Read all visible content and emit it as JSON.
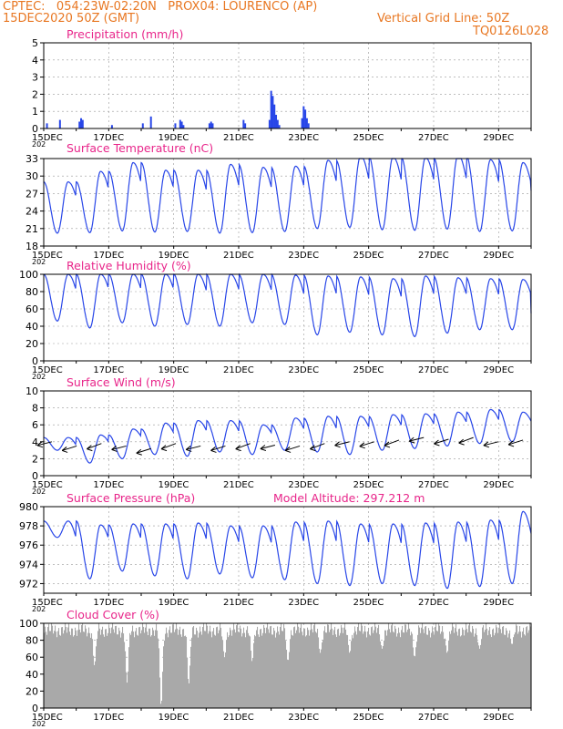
{
  "header": {
    "line1": "CPTEC:   054:23W-02:20N   PROX04: LOURENCO (AP)",
    "line2": "15DEC2020 50Z (GMT)",
    "grid_note": "Vertical Grid Line: 50Z",
    "code": "TQ0126L028"
  },
  "colors": {
    "header": "#e87722",
    "title": "#e8258a",
    "series": "#2846e8",
    "cloud": "#a9a9a9",
    "wind_barb": "#000000",
    "grid": "#999999"
  },
  "x_ticks": [
    "15DEC",
    "17DEC",
    "19DEC",
    "21DEC",
    "23DEC",
    "25DEC",
    "27DEC",
    "29DEC"
  ],
  "x_start_clip": "202",
  "chart_data": [
    {
      "type": "bar",
      "title": "Precipitation (mm/h)",
      "ylim": [
        0,
        5
      ],
      "yticks": [
        0,
        1,
        2,
        3,
        4,
        5
      ],
      "x_days": [
        0.1,
        0.5,
        1.1,
        1.15,
        1.2,
        2.1,
        3.05,
        3.3,
        4.05,
        4.2,
        4.25,
        4.3,
        5.1,
        5.15,
        5.2,
        6.15,
        6.2,
        6.95,
        7.0,
        7.05,
        7.1,
        7.15,
        7.2,
        7.25,
        7.95,
        8.0,
        8.05,
        8.1,
        8.15
      ],
      "values": [
        0.3,
        0.5,
        0.4,
        0.6,
        0.5,
        0.2,
        0.3,
        0.7,
        0.3,
        0.5,
        0.4,
        0.2,
        0.3,
        0.4,
        0.3,
        0.5,
        0.3,
        0.5,
        2.2,
        1.9,
        1.4,
        0.8,
        0.5,
        0.2,
        0.6,
        1.3,
        1.1,
        0.6,
        0.3
      ],
      "grid": true
    },
    {
      "type": "line",
      "title": "Surface Temperature (nC)",
      "ylim": [
        18,
        33
      ],
      "yticks": [
        18,
        21,
        24,
        27,
        30,
        33
      ],
      "min": [
        20.2,
        20.3,
        20.6,
        20.4,
        20.5,
        20.2,
        20.3,
        20.5,
        21.0,
        21.2,
        20.8,
        20.7,
        20.9,
        20.5,
        20.6
      ],
      "max": [
        29.0,
        30.8,
        32.3,
        31.0,
        31.0,
        32.0,
        31.5,
        31.7,
        32.7,
        33.5,
        33.3,
        33.2,
        33.7,
        32.8,
        32.3
      ],
      "last": 27.5,
      "grid": true
    },
    {
      "type": "line",
      "title": "Relative Humidity (%)",
      "ylim": [
        0,
        100
      ],
      "yticks": [
        0,
        20,
        40,
        60,
        80,
        100
      ],
      "min": [
        46,
        38,
        44,
        40,
        42,
        40,
        44,
        42,
        30,
        33,
        30,
        28,
        32,
        36,
        36
      ],
      "max": [
        100,
        100,
        100,
        100,
        100,
        100,
        100,
        99,
        98,
        97,
        95,
        98,
        96,
        95,
        94
      ],
      "last": 55,
      "grid": true
    },
    {
      "type": "line",
      "title": "Surface Wind (m/s)",
      "ylim": [
        0,
        10
      ],
      "yticks": [
        0,
        2,
        4,
        6,
        8,
        10
      ],
      "min": [
        3.0,
        1.5,
        2.0,
        2.5,
        2.3,
        2.8,
        2.5,
        3.0,
        2.8,
        2.5,
        3.0,
        3.2,
        3.5,
        3.8,
        4.0
      ],
      "max": [
        4.5,
        4.8,
        5.5,
        6.2,
        6.5,
        6.5,
        6.0,
        6.8,
        7.0,
        7.0,
        7.2,
        7.3,
        7.5,
        7.8,
        7.5
      ],
      "barb_speeds": [
        4.0,
        3.5,
        3.8,
        3.5,
        3.2,
        3.8,
        3.5,
        3.5,
        3.8,
        3.6,
        3.5,
        3.8,
        4.0,
        4.0,
        4.2,
        4.5,
        4.3,
        4.5,
        4.0,
        4.2
      ],
      "grid": true
    },
    {
      "type": "line",
      "title": "Surface Pressure (hPa)",
      "annotation": "Model Altitude: 297.212 m",
      "ylim": [
        971,
        980
      ],
      "yticks": [
        972,
        974,
        976,
        978,
        980
      ],
      "min": [
        976.8,
        972.5,
        973.3,
        972.8,
        972.5,
        973.0,
        972.6,
        972.4,
        972.0,
        971.8,
        972.0,
        971.8,
        971.5,
        971.7,
        972.0
      ],
      "max": [
        978.5,
        978.1,
        978.2,
        978.2,
        978.3,
        978.0,
        978.0,
        978.4,
        978.5,
        978.2,
        978.2,
        978.3,
        978.4,
        978.6,
        979.5
      ],
      "grid": true
    },
    {
      "type": "area",
      "title": "Cloud Cover (%)",
      "ylim": [
        0,
        100
      ],
      "yticks": [
        0,
        20,
        40,
        60,
        80,
        100
      ],
      "typical": 92,
      "dips": [
        {
          "day": 1.55,
          "value": 50
        },
        {
          "day": 2.55,
          "value": 30
        },
        {
          "day": 3.6,
          "value": 2
        },
        {
          "day": 4.45,
          "value": 28
        },
        {
          "day": 5.55,
          "value": 60
        },
        {
          "day": 6.4,
          "value": 55
        },
        {
          "day": 7.5,
          "value": 55
        },
        {
          "day": 8.5,
          "value": 65
        },
        {
          "day": 9.4,
          "value": 65
        },
        {
          "day": 10.4,
          "value": 70
        },
        {
          "day": 11.4,
          "value": 60
        },
        {
          "day": 12.4,
          "value": 65
        },
        {
          "day": 13.4,
          "value": 70
        },
        {
          "day": 14.4,
          "value": 75
        }
      ],
      "grid": true
    }
  ]
}
